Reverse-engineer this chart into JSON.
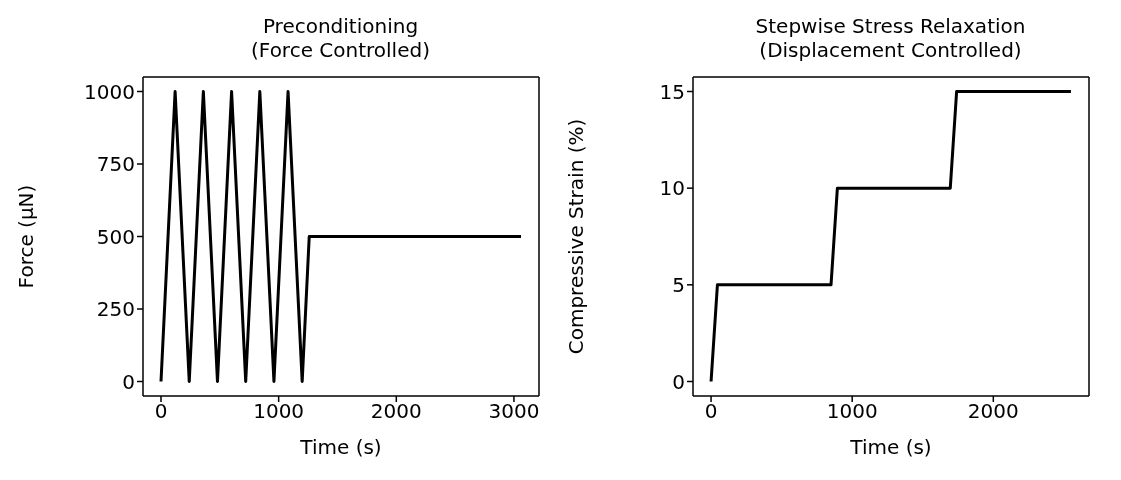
{
  "chart_data": [
    {
      "type": "line",
      "title": "Preconditioning\n(Force Controlled)",
      "xlabel": "Time (s)",
      "ylabel": "Force (μN)",
      "x": [
        0,
        120,
        240,
        360,
        480,
        600,
        720,
        840,
        960,
        1080,
        1200,
        1260,
        3060
      ],
      "series": [
        {
          "color": "#000000",
          "values": [
            0,
            1000,
            0,
            1000,
            0,
            1000,
            0,
            1000,
            0,
            1000,
            0,
            500,
            500
          ]
        }
      ],
      "xlim": [
        -153,
        3213
      ],
      "xticks": [
        0,
        1000,
        2000,
        3000
      ],
      "ylim": [
        -50,
        1050
      ],
      "yticks": [
        0,
        250,
        500,
        750,
        1000
      ],
      "grid": false,
      "legend": false,
      "marker": "none",
      "line_style": "solid"
    },
    {
      "type": "line",
      "title": "Stepwise Stress Relaxation\n(Displacement Controlled)",
      "xlabel": "Time (s)",
      "ylabel": "Compressive Strain (%)",
      "x": [
        0,
        45,
        850,
        895,
        1695,
        1740,
        2550
      ],
      "series": [
        {
          "color": "#000000",
          "values": [
            0,
            5,
            5,
            10,
            10,
            15,
            15
          ]
        }
      ],
      "xlim": [
        -128,
        2678
      ],
      "xticks": [
        0,
        1000,
        2000
      ],
      "ylim": [
        -0.75,
        15.75
      ],
      "yticks": [
        0,
        5,
        10,
        15
      ],
      "grid": false,
      "legend": false,
      "marker": "none",
      "line_style": "solid"
    }
  ]
}
